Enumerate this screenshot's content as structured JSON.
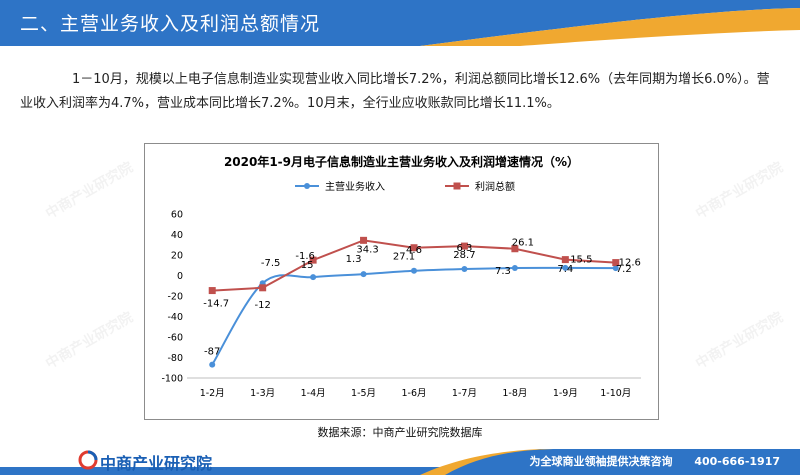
{
  "header": {
    "title": "二、主营业务收入及利润总额情况"
  },
  "intro": {
    "text": "1－10月，规模以上电子信息制造业实现营业收入同比增长7.2%，利润总额同比增长12.6%（去年同期为增长6.0%）。营业收入利润率为4.7%，营业成本同比增长7.2%。10月末，全行业应收账款同比增长11.1%。"
  },
  "chart_data": {
    "type": "line",
    "title": "2020年1-9月电子信息制造业主营业务收入及利润增速情况（%）",
    "categories": [
      "1-2月",
      "1-3月",
      "1-4月",
      "1-5月",
      "1-6月",
      "1-7月",
      "1-8月",
      "1-9月",
      "1-10月"
    ],
    "series": [
      {
        "name": "主营业务收入",
        "color": "#4a90d9",
        "values": [
          -87,
          -7.5,
          -1.6,
          1.3,
          4.6,
          6.3,
          7.3,
          7.4,
          7.2
        ],
        "labels": [
          "-87",
          "-7.5",
          "-1.6",
          "1.3",
          "4.6",
          "6.3",
          "7.3",
          "7.4",
          "7.2"
        ]
      },
      {
        "name": "利润总额",
        "color": "#c0504d",
        "values": [
          -14.7,
          -12,
          15,
          34.3,
          27.1,
          28.7,
          26.1,
          15.5,
          12.6
        ],
        "labels": [
          "-14.7",
          "-12",
          "15",
          "34.3",
          "27.1",
          "28.7",
          "26.1",
          "15.5",
          "12.6"
        ]
      }
    ],
    "ylim": [
      -100,
      60
    ],
    "yticks": [
      60,
      40,
      20,
      0,
      -20,
      -40,
      -60,
      -80,
      -100
    ],
    "grid": false,
    "legend": "top"
  },
  "source": {
    "text": "数据来源：中商产业研究院数据库"
  },
  "footer": {
    "brand": "中商产业研究院",
    "slogan": "为全球商业领袖提供决策咨询",
    "phone": "400-666-1917"
  },
  "watermark": {
    "text": "中商产业研究院"
  }
}
